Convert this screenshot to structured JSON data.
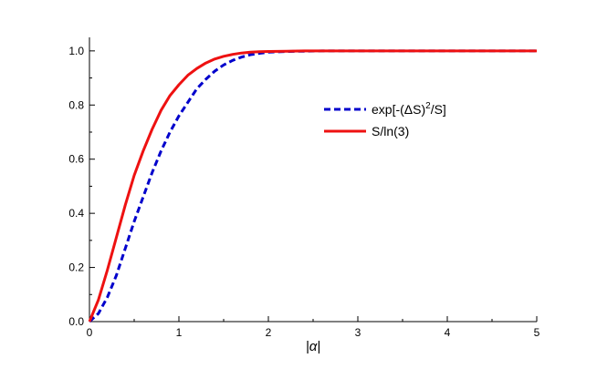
{
  "chart_data": {
    "type": "line",
    "title": "",
    "xlabel": "|α|",
    "ylabel": "",
    "xlim": [
      0,
      5
    ],
    "ylim": [
      0,
      1.05
    ],
    "xticks": [
      0,
      1,
      2,
      3,
      4,
      5
    ],
    "xtick_labels": [
      "0",
      "1",
      "2",
      "3",
      "4",
      "5"
    ],
    "yticks": [
      0,
      0.2,
      0.4,
      0.6,
      0.8,
      1.0
    ],
    "ytick_labels": [
      "0.0",
      "0.2",
      "0.4",
      "0.6",
      "0.8",
      "1.0"
    ],
    "grid": false,
    "legend_position": "upper-right",
    "series": [
      {
        "name": "exp[-(ΔS)²/S]",
        "legend_main": "exp[-(ΔS)",
        "legend_sup": "2",
        "legend_tail": "/S]",
        "color": "#0000cc",
        "style": "dashed",
        "x": [
          0,
          0.1,
          0.2,
          0.3,
          0.4,
          0.5,
          0.6,
          0.7,
          0.8,
          0.9,
          1.0,
          1.1,
          1.2,
          1.3,
          1.4,
          1.5,
          1.6,
          1.7,
          1.8,
          1.9,
          2.0,
          2.2,
          2.4,
          2.6,
          3.0,
          3.5,
          4.0,
          4.5,
          5.0
        ],
        "y": [
          0,
          0.03,
          0.09,
          0.17,
          0.27,
          0.37,
          0.46,
          0.55,
          0.63,
          0.7,
          0.76,
          0.81,
          0.86,
          0.895,
          0.925,
          0.948,
          0.965,
          0.977,
          0.986,
          0.991,
          0.995,
          0.998,
          0.999,
          1.0,
          1.0,
          1.0,
          1.0,
          1.0,
          1.0
        ]
      },
      {
        "name": "S/ln(3)",
        "legend_main": "S/ln(3)",
        "legend_sup": "",
        "legend_tail": "",
        "color": "#ee1111",
        "style": "solid",
        "x": [
          0,
          0.1,
          0.2,
          0.3,
          0.4,
          0.5,
          0.6,
          0.7,
          0.8,
          0.9,
          1.0,
          1.1,
          1.2,
          1.3,
          1.4,
          1.5,
          1.6,
          1.7,
          1.8,
          1.9,
          2.0,
          2.2,
          2.4,
          2.6,
          3.0,
          3.5,
          4.0,
          4.5,
          5.0
        ],
        "y": [
          0,
          0.08,
          0.19,
          0.31,
          0.43,
          0.54,
          0.63,
          0.71,
          0.78,
          0.835,
          0.875,
          0.91,
          0.935,
          0.955,
          0.97,
          0.98,
          0.987,
          0.992,
          0.995,
          0.997,
          0.998,
          0.999,
          1.0,
          1.0,
          1.0,
          1.0,
          1.0,
          1.0,
          1.0
        ]
      }
    ]
  }
}
